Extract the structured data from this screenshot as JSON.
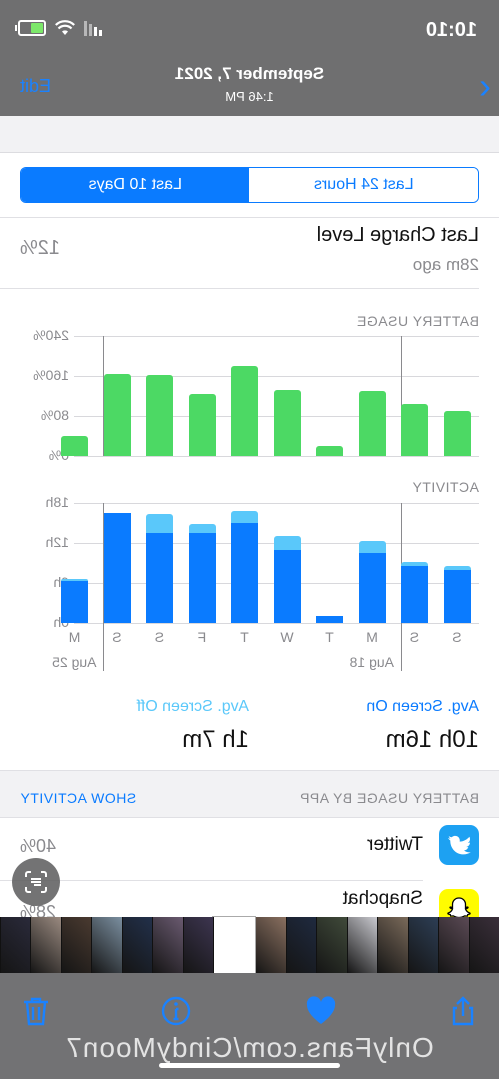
{
  "status": {
    "time": "10:10"
  },
  "nav": {
    "back_glyph": "‹",
    "title": "September 7, 2021",
    "subtitle": "1:46 PM",
    "edit": "Edit"
  },
  "segment": {
    "left": "Last 24 Hours",
    "right": "Last 10 Days",
    "selected": "Last 10 Days"
  },
  "last_charge": {
    "title": "Last Charge Level",
    "ago": "28m ago",
    "value": "12%"
  },
  "battery_usage": {
    "label": "BATTERY USAGE",
    "y_ticks": [
      "240%",
      "160%",
      "80%",
      "0%"
    ]
  },
  "activity": {
    "label": "ACTIVITY",
    "y_ticks": [
      "18h",
      "12h",
      "6h",
      "0h"
    ]
  },
  "x_axis": {
    "days": [
      "S",
      "S",
      "M",
      "T",
      "W",
      "T",
      "F",
      "S",
      "S",
      "M"
    ],
    "dates": [
      "Aug 18",
      "Aug 25"
    ]
  },
  "chart_data": [
    {
      "type": "bar",
      "title": "BATTERY USAGE",
      "categories": [
        "S",
        "S",
        "M",
        "T",
        "W",
        "T",
        "F",
        "S",
        "S",
        "M"
      ],
      "values": [
        90,
        105,
        130,
        20,
        132,
        180,
        125,
        163,
        165,
        40
      ],
      "ylim": [
        0,
        240
      ],
      "color": "#4cd964"
    },
    {
      "type": "bar",
      "title": "ACTIVITY",
      "categories": [
        "S",
        "S",
        "M",
        "T",
        "W",
        "T",
        "F",
        "S",
        "S",
        "M"
      ],
      "series": [
        {
          "values": [
            8.0,
            8.5,
            10.5,
            1.0,
            11.0,
            15.0,
            13.5,
            13.5,
            16.5,
            6.3
          ],
          "color": "#0a7bff"
        },
        {
          "values": [
            0.6,
            0.6,
            1.8,
            0.0,
            2.0,
            1.8,
            1.4,
            2.8,
            0.0,
            0.3
          ],
          "color": "#5ac8fa"
        }
      ],
      "ylim": [
        0,
        18
      ]
    }
  ],
  "averages": {
    "on_label": "Avg. Screen On",
    "on_value": "10h 16m",
    "off_label": "Avg. Screen Off",
    "off_value": "1h 7m"
  },
  "by_app": {
    "label": "BATTERY USAGE BY APP",
    "action": "SHOW ACTIVITY",
    "apps": [
      {
        "name": "Twitter",
        "pct": "40%"
      },
      {
        "name": "Snapchat",
        "pct": "28%"
      }
    ]
  },
  "watermark": "OnlyFans.com/CindyMoon7",
  "colors": {
    "accent": "#0a7bff",
    "green": "#4cd964",
    "light_blue": "#5ac8fa"
  }
}
